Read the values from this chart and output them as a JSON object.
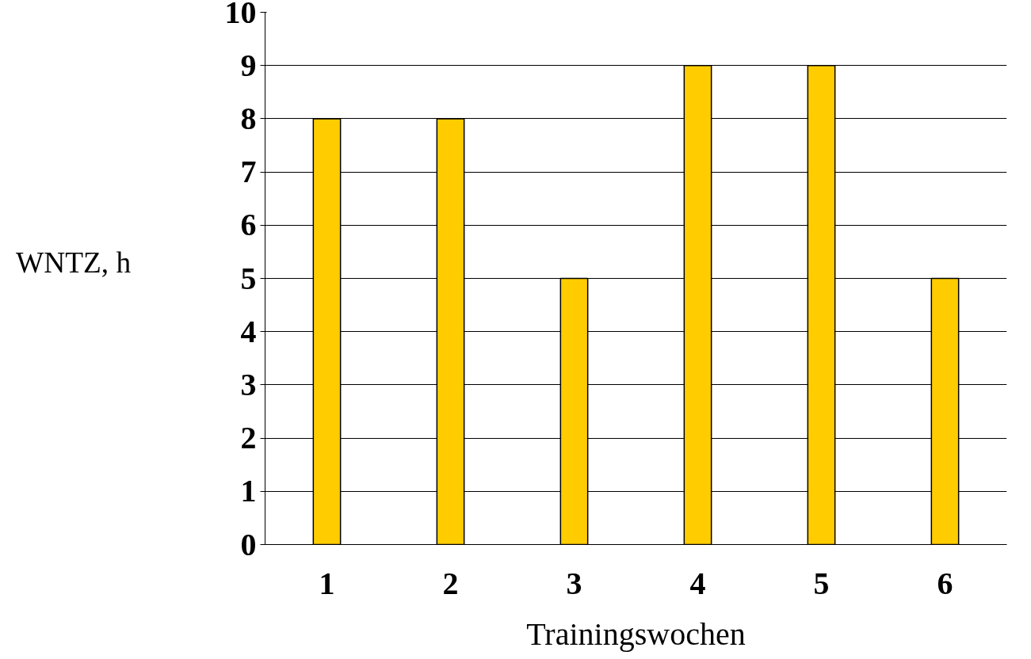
{
  "chart_data": {
    "type": "bar",
    "xlabel": "Trainingswochen",
    "ylabel": "WNTZ, h",
    "categories": [
      "1",
      "2",
      "3",
      "4",
      "5",
      "6"
    ],
    "values": [
      8,
      8,
      5,
      9,
      9,
      5
    ],
    "color": "#ffcc00",
    "ylim": [
      0,
      10
    ],
    "yticks": [
      0,
      1,
      2,
      3,
      4,
      5,
      6,
      7,
      8,
      9,
      10
    ],
    "grid": "y"
  }
}
